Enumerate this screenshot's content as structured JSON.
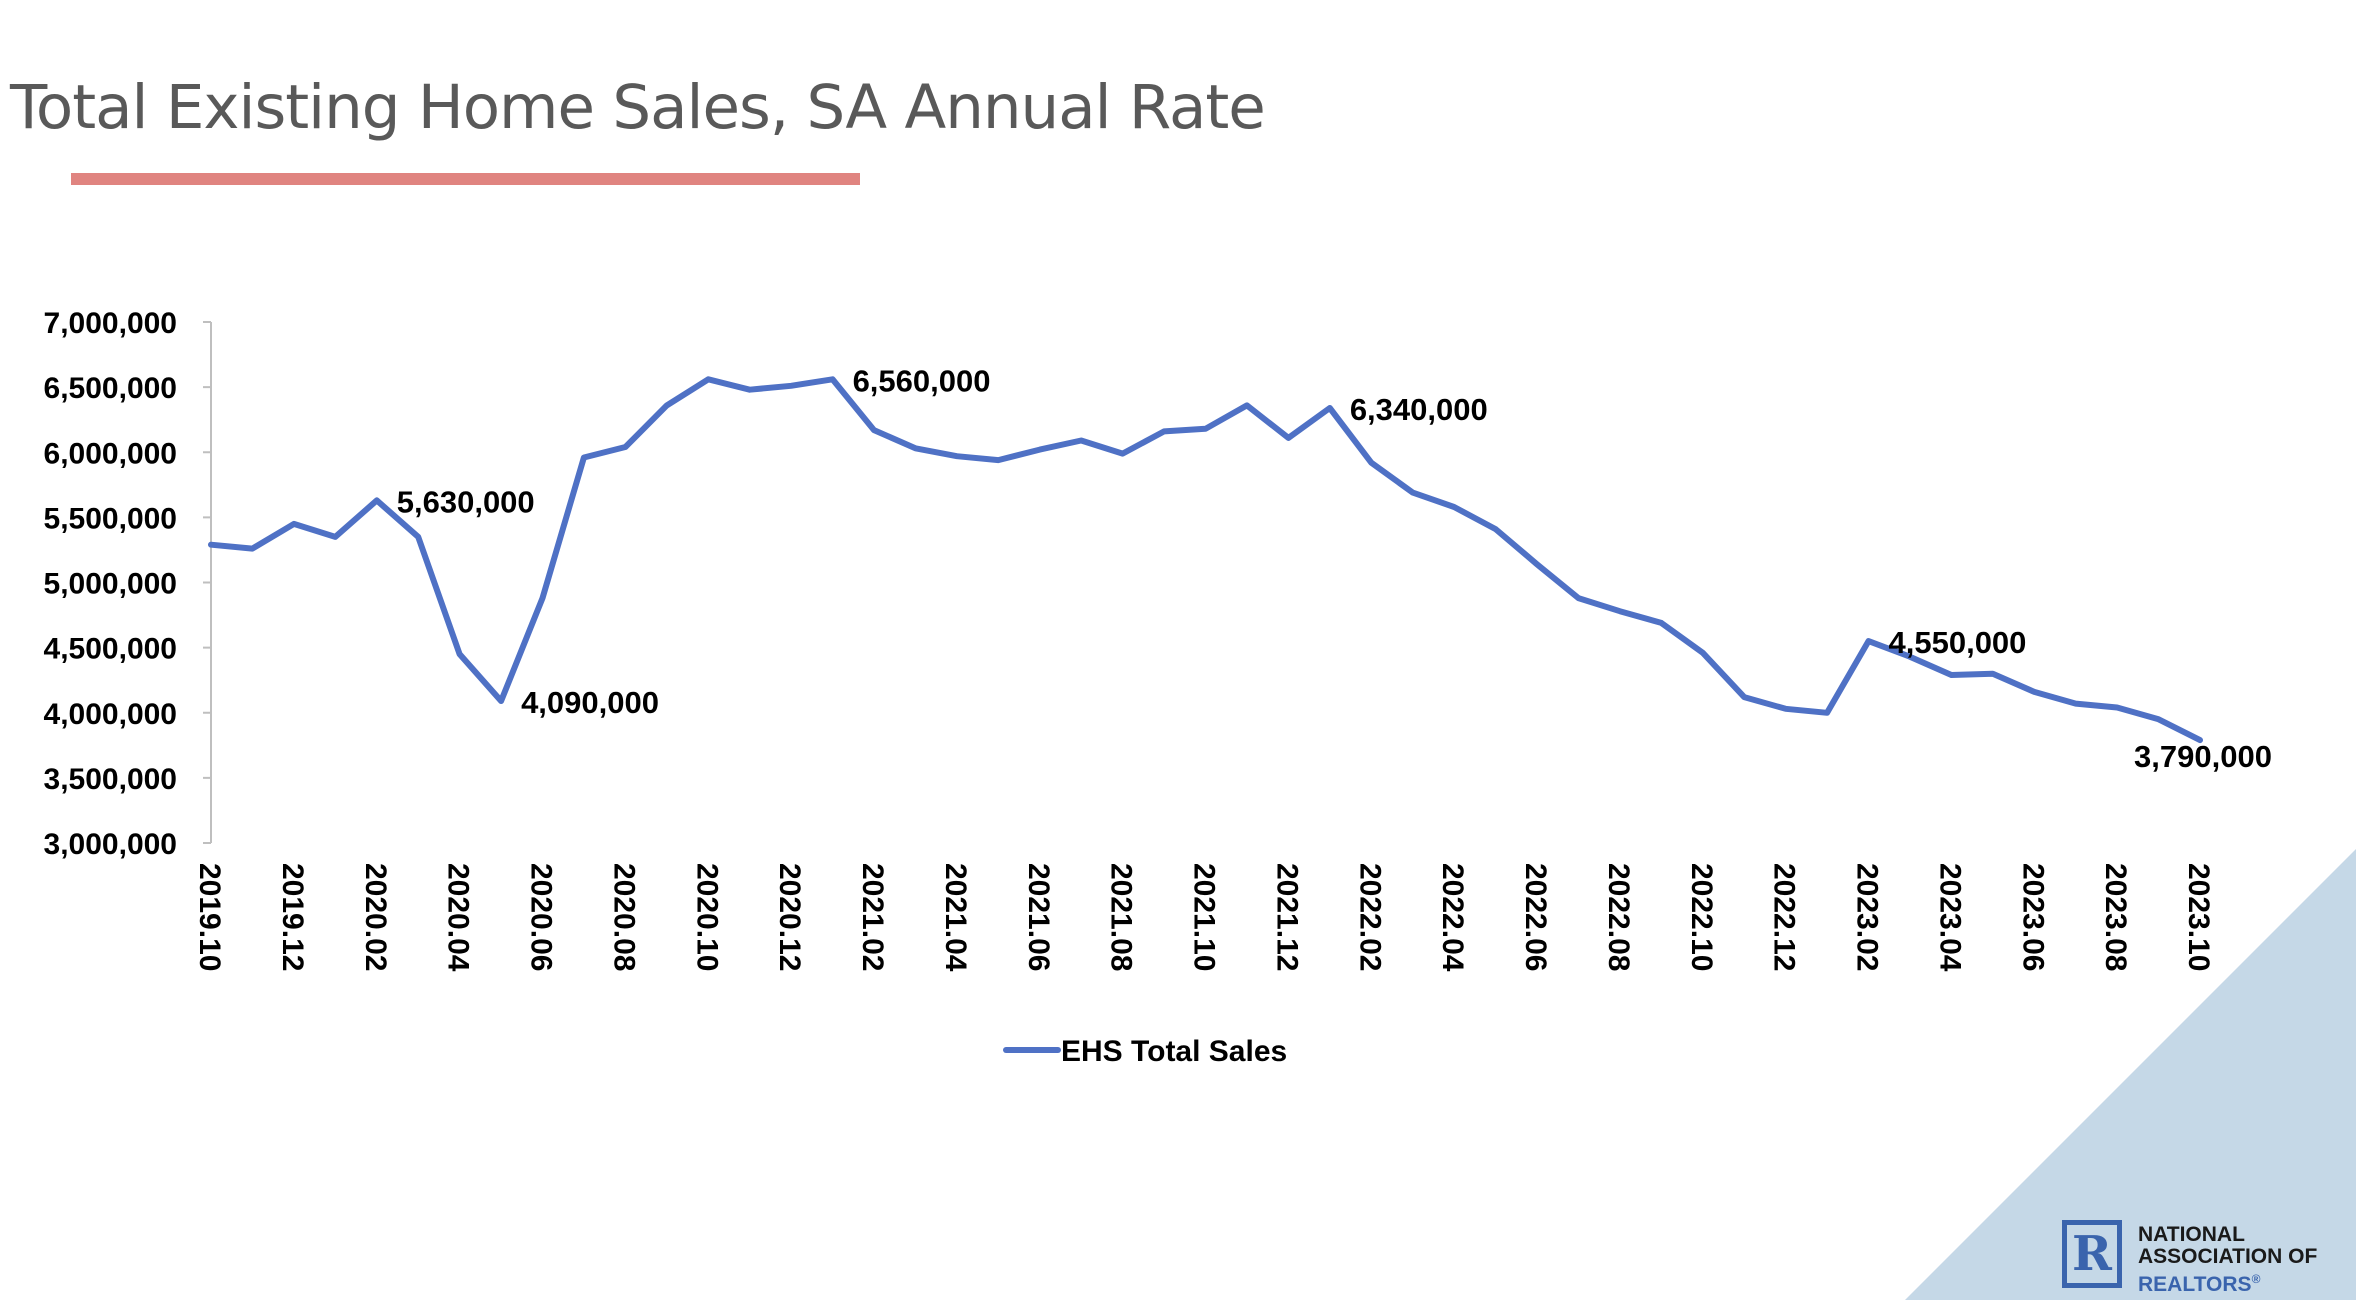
{
  "slide": {
    "title": "Total Existing Home Sales, SA Annual Rate",
    "accent_color": "#e08480",
    "corner_color": "#c5d8e7"
  },
  "logo": {
    "mark": "R",
    "line1": "NATIONAL",
    "line2": "ASSOCIATION OF",
    "line3": "REALTORS",
    "trademark": "®",
    "mark_color": "#3a64ad",
    "text_color": "#1a1a1a",
    "realtors_color": "#3a64ad"
  },
  "chart_data": {
    "type": "line",
    "title": "",
    "xlabel": "",
    "ylabel": "",
    "ylim": [
      3000000,
      7000000
    ],
    "y_ticks": [
      3000000,
      3500000,
      4000000,
      4500000,
      5000000,
      5500000,
      6000000,
      6500000,
      7000000
    ],
    "y_tick_labels": [
      "3,000,000",
      "3,500,000",
      "4,000,000",
      "4,500,000",
      "5,000,000",
      "5,500,000",
      "6,000,000",
      "6,500,000",
      "7,000,000"
    ],
    "x_tick_labels": [
      "2019.10",
      "2019.12",
      "2020.02",
      "2020.04",
      "2020.06",
      "2020.08",
      "2020.10",
      "2020.12",
      "2021.02",
      "2021.04",
      "2021.06",
      "2021.08",
      "2021.10",
      "2021.12",
      "2022.02",
      "2022.04",
      "2022.06",
      "2022.08",
      "2022.10",
      "2022.12",
      "2023.02",
      "2023.04",
      "2023.06",
      "2023.08",
      "2023.10"
    ],
    "categories": [
      "2019.10",
      "2019.11",
      "2019.12",
      "2020.01",
      "2020.02",
      "2020.03",
      "2020.04",
      "2020.05",
      "2020.06",
      "2020.07",
      "2020.08",
      "2020.09",
      "2020.10",
      "2020.11",
      "2020.12",
      "2021.01",
      "2021.02",
      "2021.03",
      "2021.04",
      "2021.05",
      "2021.06",
      "2021.07",
      "2021.08",
      "2021.09",
      "2021.10",
      "2021.11",
      "2021.12",
      "2022.01",
      "2022.02",
      "2022.03",
      "2022.04",
      "2022.05",
      "2022.06",
      "2022.07",
      "2022.08",
      "2022.09",
      "2022.10",
      "2022.11",
      "2022.12",
      "2023.01",
      "2023.02",
      "2023.03",
      "2023.04",
      "2023.05",
      "2023.06",
      "2023.07",
      "2023.08",
      "2023.09",
      "2023.10"
    ],
    "series": [
      {
        "name": "EHS Total Sales",
        "color": "#4f71c5",
        "values": [
          5290000,
          5260000,
          5450000,
          5350000,
          5630000,
          5350000,
          4450000,
          4090000,
          4880000,
          5960000,
          6040000,
          6360000,
          6560000,
          6480000,
          6510000,
          6560000,
          6170000,
          6030000,
          5970000,
          5940000,
          6020000,
          6090000,
          5990000,
          6160000,
          6180000,
          6360000,
          6110000,
          6340000,
          5920000,
          5690000,
          5580000,
          5410000,
          5140000,
          4880000,
          4780000,
          4690000,
          4460000,
          4120000,
          4030000,
          4000000,
          4550000,
          4430000,
          4290000,
          4300000,
          4160000,
          4070000,
          4040000,
          3950000,
          3790000
        ]
      }
    ],
    "annotations": [
      {
        "category": "2020.02",
        "text": "5,630,000",
        "position": "right"
      },
      {
        "category": "2020.05",
        "text": "4,090,000",
        "position": "right"
      },
      {
        "category": "2021.01",
        "text": "6,560,000",
        "position": "right"
      },
      {
        "category": "2022.01",
        "text": "6,340,000",
        "position": "right"
      },
      {
        "category": "2023.02",
        "text": "4,550,000",
        "position": "right"
      },
      {
        "category": "2023.10",
        "text": "3,790,000",
        "position": "below"
      }
    ],
    "legend": {
      "position": "bottom",
      "label": "EHS Total Sales"
    },
    "grid": false
  }
}
